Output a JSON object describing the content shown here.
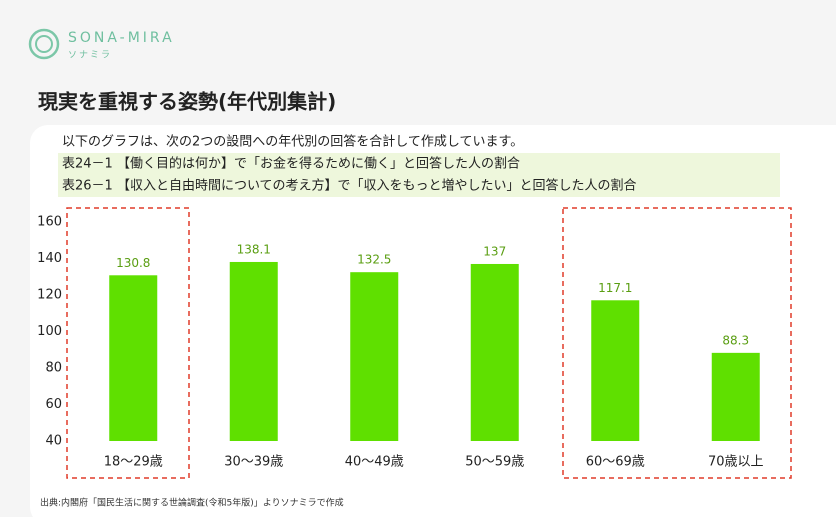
{
  "logo": {
    "name": "SONA-MIRA",
    "kana": "ソナミラ"
  },
  "header": {
    "title": "現実を重視する姿勢(年代別集計)"
  },
  "description": "以下のグラフは、次の2つの設問への年代別の回答を合計して作成しています。",
  "notes": [
    "表24－1 【働く目的は何か】で「お金を得るために働く」と回答した人の割合",
    "表26－1 【収入と自由時間についての考え方】で「収入をもっと増やしたい」と回答した人の割合"
  ],
  "source": "出典:内閣府「国民生活に関する世論調査(令和5年版)」よりソナミラで作成",
  "chart_data": {
    "type": "bar",
    "categories": [
      "18～29歳",
      "30～39歳",
      "40～49歳",
      "50～59歳",
      "60～69歳",
      "70歳以上"
    ],
    "values": [
      130.8,
      138.1,
      132.5,
      137,
      117.1,
      88.3
    ],
    "color": "#5fe000",
    "ylim": [
      40,
      160
    ],
    "yticks": [
      40,
      60,
      80,
      100,
      120,
      140,
      160
    ]
  }
}
